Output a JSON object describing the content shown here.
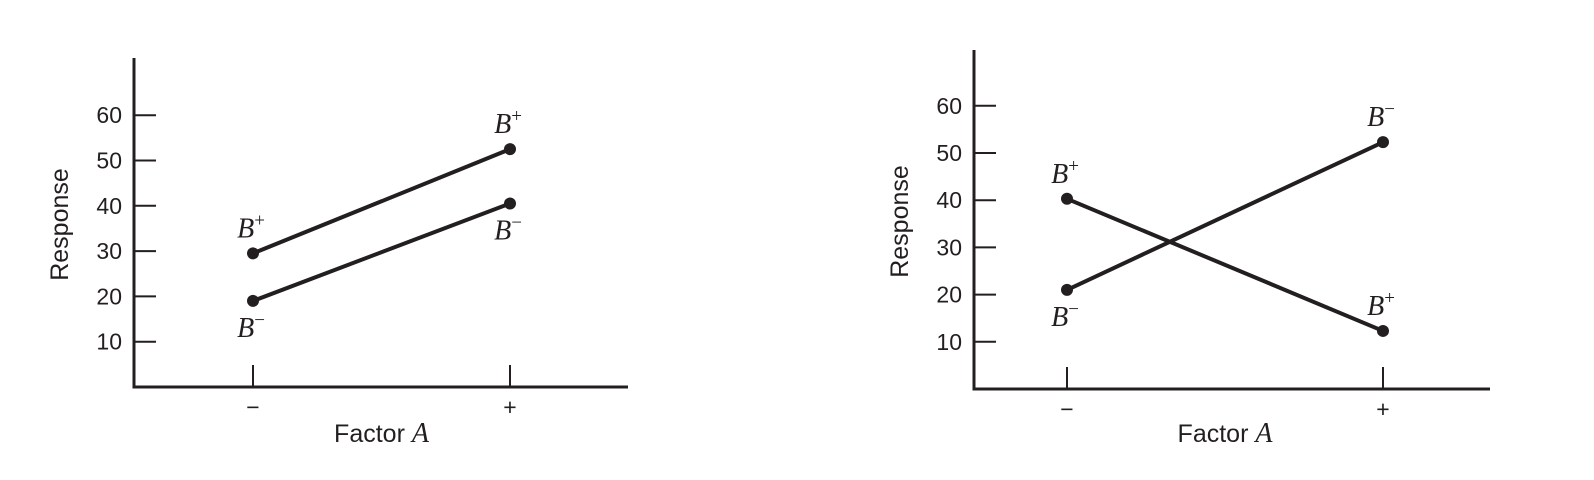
{
  "chart_data": [
    {
      "type": "line",
      "title": "",
      "xlabel": "Factor ",
      "xlabel_italic": "A",
      "ylabel": "Response",
      "categories": [
        "−",
        "+"
      ],
      "yticks": [
        10,
        20,
        30,
        40,
        50,
        60
      ],
      "ylim": [
        0,
        70
      ],
      "grid": false,
      "series": [
        {
          "name": "B+",
          "label_base": "B",
          "label_sup": "+",
          "values": [
            29.5,
            52.5
          ],
          "label_pos": [
            "above",
            "above"
          ]
        },
        {
          "name": "B−",
          "label_base": "B",
          "label_sup": "−",
          "values": [
            19,
            40.5
          ],
          "label_pos": [
            "below",
            "below"
          ]
        }
      ]
    },
    {
      "type": "line",
      "title": "",
      "xlabel": "Factor ",
      "xlabel_italic": "A",
      "ylabel": "Response",
      "categories": [
        "−",
        "+"
      ],
      "yticks": [
        10,
        20,
        30,
        40,
        50,
        60
      ],
      "ylim": [
        0,
        70
      ],
      "grid": false,
      "series": [
        {
          "name": "B+",
          "label_base": "B",
          "label_sup": "+",
          "values": [
            40.3,
            12.3
          ],
          "label_pos": [
            "above",
            "above"
          ]
        },
        {
          "name": "B−",
          "label_base": "B",
          "label_sup": "−",
          "values": [
            21,
            52.3
          ],
          "label_pos": [
            "below",
            "above"
          ]
        }
      ]
    }
  ]
}
